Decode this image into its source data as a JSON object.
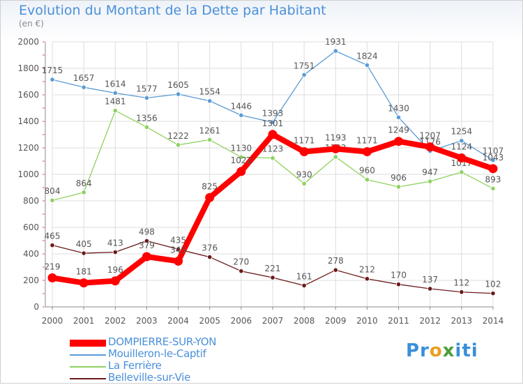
{
  "chart_data": {
    "type": "line",
    "title": "Evolution du Montant de la Dette par Habitant",
    "subtitle": "(en €)",
    "x": [
      "2000",
      "2001",
      "2002",
      "2003",
      "2004",
      "2005",
      "2006",
      "2007",
      "2008",
      "2009",
      "2010",
      "2011",
      "2012",
      "2013",
      "2014"
    ],
    "ylim": [
      0,
      2000
    ],
    "yticks": [
      0,
      200,
      400,
      600,
      800,
      1000,
      1200,
      1400,
      1600,
      1800,
      2000
    ],
    "grid": true,
    "legend_position": "bottom",
    "series": [
      {
        "name": "DOMPIERRE-SUR-YON",
        "color": "#ff0000",
        "values": [
          219,
          181,
          196,
          379,
          345,
          825,
          1022,
          1301,
          1171,
          1193,
          1171,
          1249,
          1207,
          1124,
          1043
        ]
      },
      {
        "name": "Mouilleron-le-Captif",
        "color": "#5a9bd5",
        "values": [
          1715,
          1657,
          1614,
          1577,
          1605,
          1554,
          1446,
          1393,
          1751,
          1931,
          1824,
          1430,
          1176,
          1254,
          1107
        ]
      },
      {
        "name": "La Ferrière",
        "color": "#8fd160",
        "values": [
          804,
          864,
          1481,
          1356,
          1222,
          1261,
          1130,
          1123,
          930,
          1132,
          960,
          906,
          947,
          1017,
          893
        ]
      },
      {
        "name": "Belleville-sur-Vie",
        "color": "#6b1a1a",
        "values": [
          465,
          405,
          413,
          498,
          435,
          376,
          270,
          221,
          161,
          278,
          212,
          170,
          137,
          112,
          102
        ]
      }
    ]
  },
  "logo": {
    "text": "Proxiti",
    "letters": [
      "P",
      "r",
      "o",
      "x",
      "i",
      "t",
      "i"
    ],
    "colors": [
      "#3a8fd8",
      "#3a8fd8",
      "#e8a020",
      "#4a9e3a",
      "#3a8fd8",
      "#3a8fd8",
      "#3a8fd8"
    ]
  }
}
